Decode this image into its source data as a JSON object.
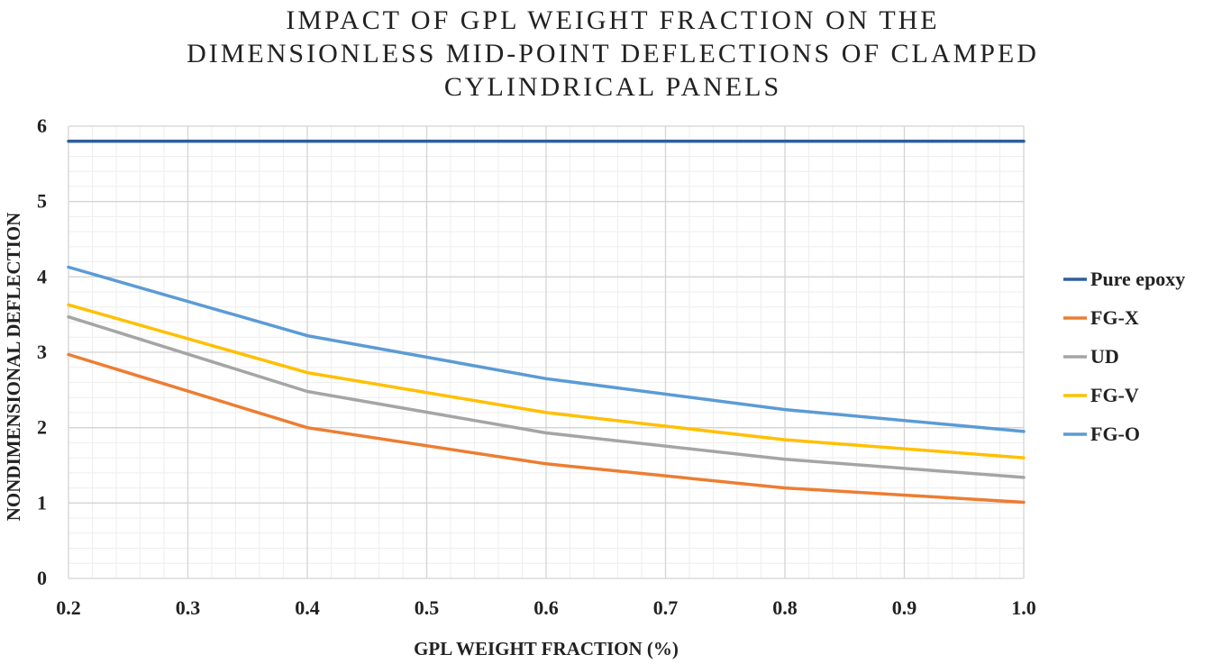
{
  "chart_data": {
    "type": "line",
    "title_lines": [
      "IMPACT OF GPL WEIGHT FRACTION ON THE",
      "DIMENSIONLESS MID-POINT DEFLECTIONS OF CLAMPED",
      "CYLINDRICAL PANELS"
    ],
    "xlabel": "GPL WEIGHT FRACTION (%)",
    "ylabel": "NONDIMENSIONAL DEFLECTION",
    "xlim": [
      0.2,
      1.0
    ],
    "ylim": [
      0,
      6
    ],
    "x_ticks": [
      "0.2",
      "0.3",
      "0.4",
      "0.5",
      "0.6",
      "0.7",
      "0.8",
      "0.9",
      "1.0"
    ],
    "x_tick_values": [
      0.2,
      0.3,
      0.4,
      0.5,
      0.6,
      0.7,
      0.8,
      0.9,
      1.0
    ],
    "y_ticks": [
      "0",
      "1",
      "2",
      "3",
      "4",
      "5",
      "6"
    ],
    "y_tick_values": [
      0,
      1,
      2,
      3,
      4,
      5,
      6
    ],
    "grid": true,
    "legend_position": "right",
    "x": [
      0.2,
      0.4,
      0.6,
      0.8,
      1.0
    ],
    "series": [
      {
        "name": "Pure epoxy",
        "color": "#2E5E9E",
        "values": [
          5.8,
          5.8,
          5.8,
          5.8,
          5.8
        ]
      },
      {
        "name": "FG-X",
        "color": "#ED7D31",
        "values": [
          2.97,
          2.0,
          1.52,
          1.2,
          1.01
        ]
      },
      {
        "name": "UD",
        "color": "#A5A5A5",
        "values": [
          3.47,
          2.48,
          1.93,
          1.58,
          1.34
        ]
      },
      {
        "name": "FG-V",
        "color": "#FFC000",
        "values": [
          3.63,
          2.73,
          2.2,
          1.84,
          1.6
        ]
      },
      {
        "name": "FG-O",
        "color": "#5B9BD5",
        "values": [
          4.13,
          3.22,
          2.65,
          2.24,
          1.95
        ]
      }
    ]
  }
}
